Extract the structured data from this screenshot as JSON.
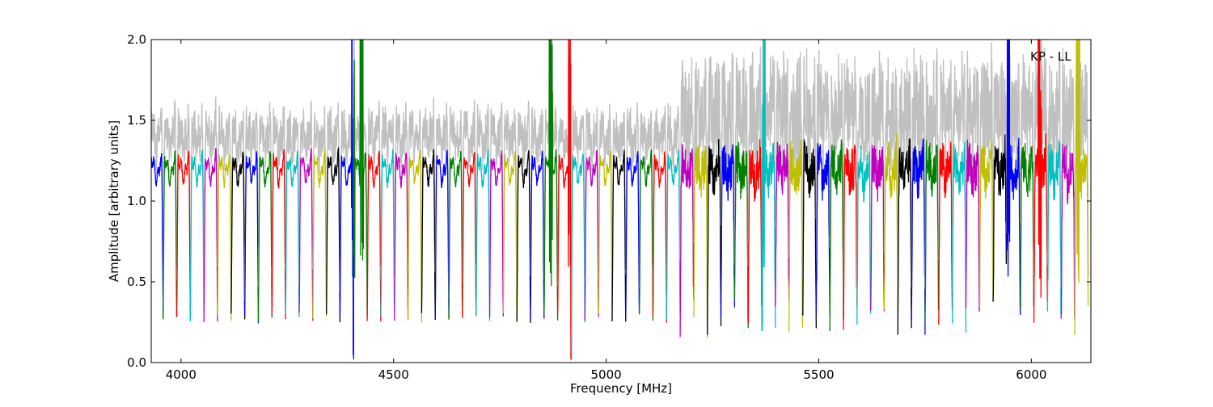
{
  "chart_data": {
    "type": "line",
    "title": "",
    "annotation": "KP - LL",
    "xlabel": "Frequency [MHz]",
    "ylabel": "Amplitude [arbitrary units]",
    "xlim": [
      3930,
      6140
    ],
    "ylim": [
      0.0,
      2.0
    ],
    "xticks": [
      4000,
      4500,
      5000,
      5500,
      6000
    ],
    "yticks": [
      0.0,
      0.5,
      1.0,
      1.5,
      2.0
    ],
    "xtick_labels": [
      "4000",
      "4500",
      "5000",
      "5500",
      "6000"
    ],
    "ytick_labels": [
      "0.0",
      "0.5",
      "1.0",
      "1.5",
      "2.0"
    ],
    "grid": false,
    "legend": "none",
    "background_series_color": "#c0c0c0",
    "series_colors": [
      "#0000ff",
      "#008000",
      "#ff0000",
      "#00bfbf",
      "#bf00bf",
      "#bfbf00",
      "#000000"
    ],
    "channel_width_mhz": 32,
    "first_channel_start_mhz": 3926,
    "channel_count": 69,
    "typical_band_level": 1.2,
    "typical_edge_level": 0.28,
    "strong_features_mhz": [
      4405,
      4425,
      4870,
      4915,
      5370,
      5945,
      6020,
      6110
    ]
  }
}
